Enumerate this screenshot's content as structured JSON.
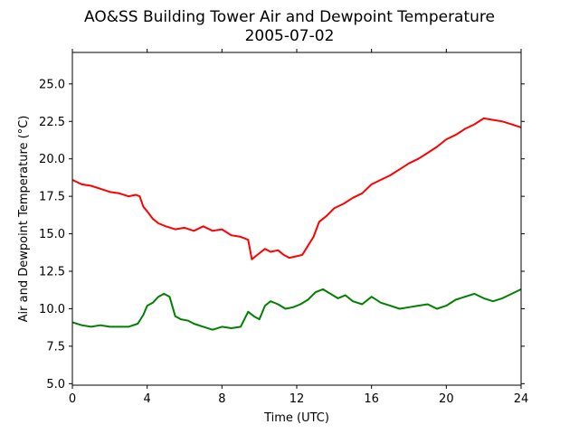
{
  "chart_data": {
    "type": "line",
    "title": "AO&SS Building Tower Air and Dewpoint Temperature",
    "subtitle": "2005-07-02",
    "xlabel": "Time (UTC)",
    "ylabel": "Air and Dewpoint Temperature (°C)",
    "xlim": [
      0,
      24
    ],
    "ylim": [
      4.9,
      27.1
    ],
    "x_ticks": [
      0,
      4,
      8,
      12,
      16,
      20,
      24
    ],
    "y_ticks": [
      5.0,
      7.5,
      10.0,
      12.5,
      15.0,
      17.5,
      20.0,
      22.5,
      25.0
    ],
    "x_tick_labels": [
      "0",
      "4",
      "8",
      "12",
      "16",
      "20",
      "24"
    ],
    "y_tick_labels": [
      "5.0",
      "7.5",
      "10.0",
      "12.5",
      "15.0",
      "17.5",
      "20.0",
      "22.5",
      "25.0"
    ],
    "grid": false,
    "series": [
      {
        "color": "#ff0000",
        "x": [
          0,
          0.5,
          1,
          1.5,
          2,
          2.5,
          3,
          3.4,
          3.6,
          3.8,
          4,
          4.3,
          4.6,
          5,
          5.5,
          6,
          6.5,
          7,
          7.5,
          8,
          8.5,
          9,
          9.4,
          9.6,
          9.8,
          10,
          10.3,
          10.6,
          11,
          11.3,
          11.6,
          12,
          12.3,
          12.6,
          12.9,
          13.2,
          13.6,
          14,
          14.5,
          15,
          15.5,
          16,
          16.5,
          17,
          17.5,
          18,
          18.5,
          19,
          19.5,
          20,
          20.5,
          21,
          21.5,
          22,
          22.5,
          23,
          23.5,
          24
        ],
        "y": [
          18.6,
          18.3,
          18.2,
          18.0,
          17.8,
          17.7,
          17.5,
          17.6,
          17.5,
          16.8,
          16.5,
          16.0,
          15.7,
          15.5,
          15.3,
          15.4,
          15.2,
          15.5,
          15.2,
          15.3,
          14.9,
          14.8,
          14.6,
          13.3,
          13.5,
          13.7,
          14.0,
          13.8,
          13.9,
          13.6,
          13.4,
          13.5,
          13.6,
          14.2,
          14.8,
          15.8,
          16.2,
          16.7,
          17.0,
          17.4,
          17.7,
          18.3,
          18.6,
          18.9,
          19.3,
          19.7,
          20.0,
          20.4,
          20.8,
          21.3,
          21.6,
          22.0,
          22.3,
          22.7,
          22.6,
          22.5,
          22.3,
          22.1
        ]
      },
      {
        "color": "#008000",
        "x": [
          0,
          0.5,
          1,
          1.5,
          2,
          2.5,
          3,
          3.5,
          3.8,
          4,
          4.3,
          4.6,
          4.9,
          5.2,
          5.5,
          5.8,
          6.2,
          6.5,
          7,
          7.5,
          8,
          8.5,
          9,
          9.4,
          9.7,
          10,
          10.3,
          10.6,
          11,
          11.4,
          11.8,
          12.2,
          12.6,
          13,
          13.4,
          13.8,
          14.2,
          14.6,
          15,
          15.5,
          16,
          16.5,
          17,
          17.5,
          18,
          18.5,
          19,
          19.5,
          20,
          20.5,
          21,
          21.5,
          22,
          22.5,
          23,
          23.5,
          24
        ],
        "y": [
          9.1,
          8.9,
          8.8,
          8.9,
          8.8,
          8.8,
          8.8,
          9.0,
          9.6,
          10.2,
          10.4,
          10.8,
          11.0,
          10.8,
          9.5,
          9.3,
          9.2,
          9.0,
          8.8,
          8.6,
          8.8,
          8.7,
          8.8,
          9.8,
          9.5,
          9.3,
          10.2,
          10.5,
          10.3,
          10.0,
          10.1,
          10.3,
          10.6,
          11.1,
          11.3,
          11.0,
          10.7,
          10.9,
          10.5,
          10.3,
          10.8,
          10.4,
          10.2,
          10.0,
          10.1,
          10.2,
          10.3,
          10.0,
          10.2,
          10.6,
          10.8,
          11.0,
          10.7,
          10.5,
          10.7,
          11.0,
          11.3
        ]
      }
    ]
  }
}
